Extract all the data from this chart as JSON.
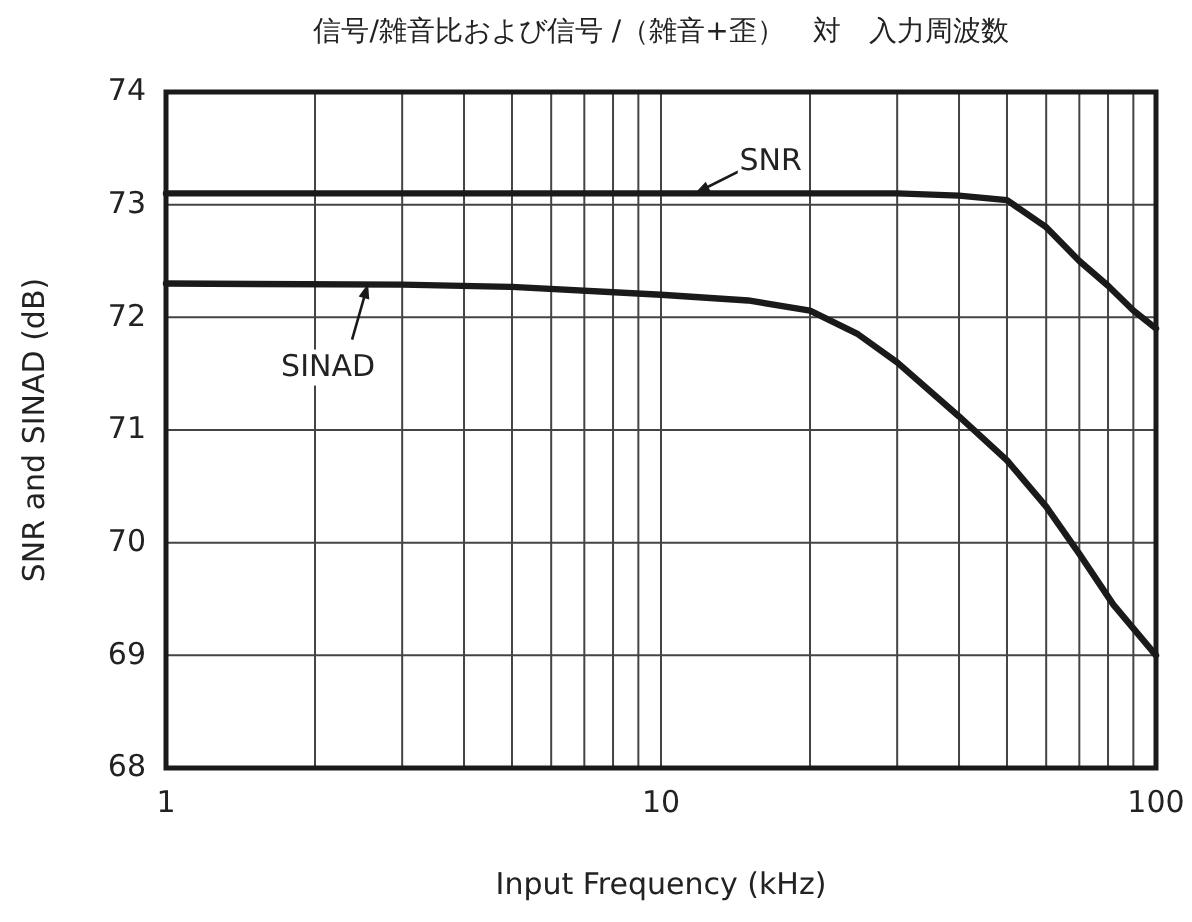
{
  "chart_data": {
    "type": "line",
    "title": "信号/雑音比および信号 /（雑音+歪）　対　入力周波数",
    "xlabel": "Input Frequency (kHz)",
    "ylabel": "SNR and SINAD (dB)",
    "log": "x",
    "grid": true,
    "xlim": [
      1,
      100
    ],
    "xticks": [
      1,
      10,
      100
    ],
    "ylim": [
      68,
      74
    ],
    "yticks": [
      68,
      69,
      70,
      71,
      72,
      73,
      74
    ],
    "marker": "none",
    "line_style": "solid",
    "series": [
      {
        "color": "#1a1a1a",
        "x": [
          1,
          5,
          10,
          20,
          30,
          40,
          50,
          60,
          70,
          80,
          90,
          100
        ],
        "values": [
          73.1,
          73.1,
          73.1,
          73.1,
          73.1,
          73.08,
          73.04,
          72.8,
          72.5,
          72.28,
          72.06,
          71.9
        ]
      },
      {
        "color": "#1a1a1a",
        "x": [
          1,
          3,
          5,
          10,
          15,
          20,
          25,
          30,
          40,
          50,
          60,
          70,
          82,
          100
        ],
        "values": [
          72.3,
          72.29,
          72.27,
          72.2,
          72.15,
          72.06,
          71.85,
          71.6,
          71.12,
          70.73,
          70.32,
          69.9,
          69.45,
          69.0
        ]
      }
    ],
    "annotations": [
      {
        "text": "SNR",
        "x": 11.7,
        "y": 73.1
      },
      {
        "text": "SINAD",
        "x": 2.56,
        "y": 72.3
      }
    ]
  }
}
